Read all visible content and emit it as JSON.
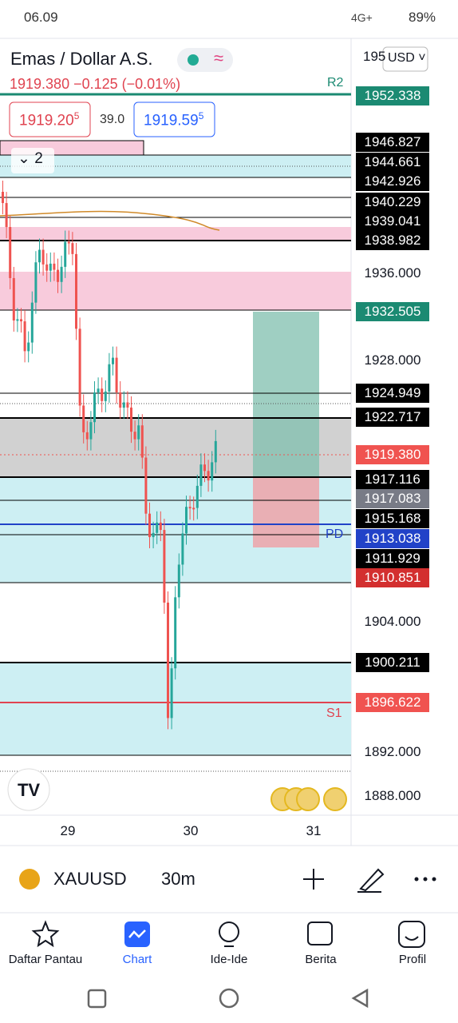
{
  "status_bar": {
    "time": "06.09",
    "network": "4G+",
    "battery": "89%"
  },
  "header": {
    "symbol_name": "Emas / Dollar A.S.",
    "price_change": "1919.380 −0.125 (−0.01%)",
    "bid": "1919.20",
    "bid_pip": "5",
    "spread": "39.0",
    "ask": "1919.59",
    "ask_pip": "5",
    "currency": "USD",
    "layouts": "2"
  },
  "price_axis": {
    "partial_label": "195",
    "labels": [
      "1952.338",
      "1946.827",
      "1944.661",
      "1942.926",
      "1940.229",
      "1939.041",
      "1938.982",
      "1936.000",
      "1932.505",
      "1928.000",
      "1924.949",
      "1922.717",
      "1919.380",
      "1917.116",
      "1917.083",
      "1915.168",
      "1913.038",
      "1911.929",
      "1910.851",
      "1904.000",
      "1900.211",
      "1896.622",
      "1892.000",
      "1888.000"
    ]
  },
  "chart_labels": {
    "r2": "R2",
    "pd": "PD",
    "s1": "S1"
  },
  "time_axis": [
    "29",
    "30",
    "31"
  ],
  "toolbar": {
    "symbol": "XAUUSD",
    "interval": "30m"
  },
  "nav": [
    "Daftar Pantau",
    "Chart",
    "Ide-Ide",
    "Berita",
    "Profil"
  ]
}
